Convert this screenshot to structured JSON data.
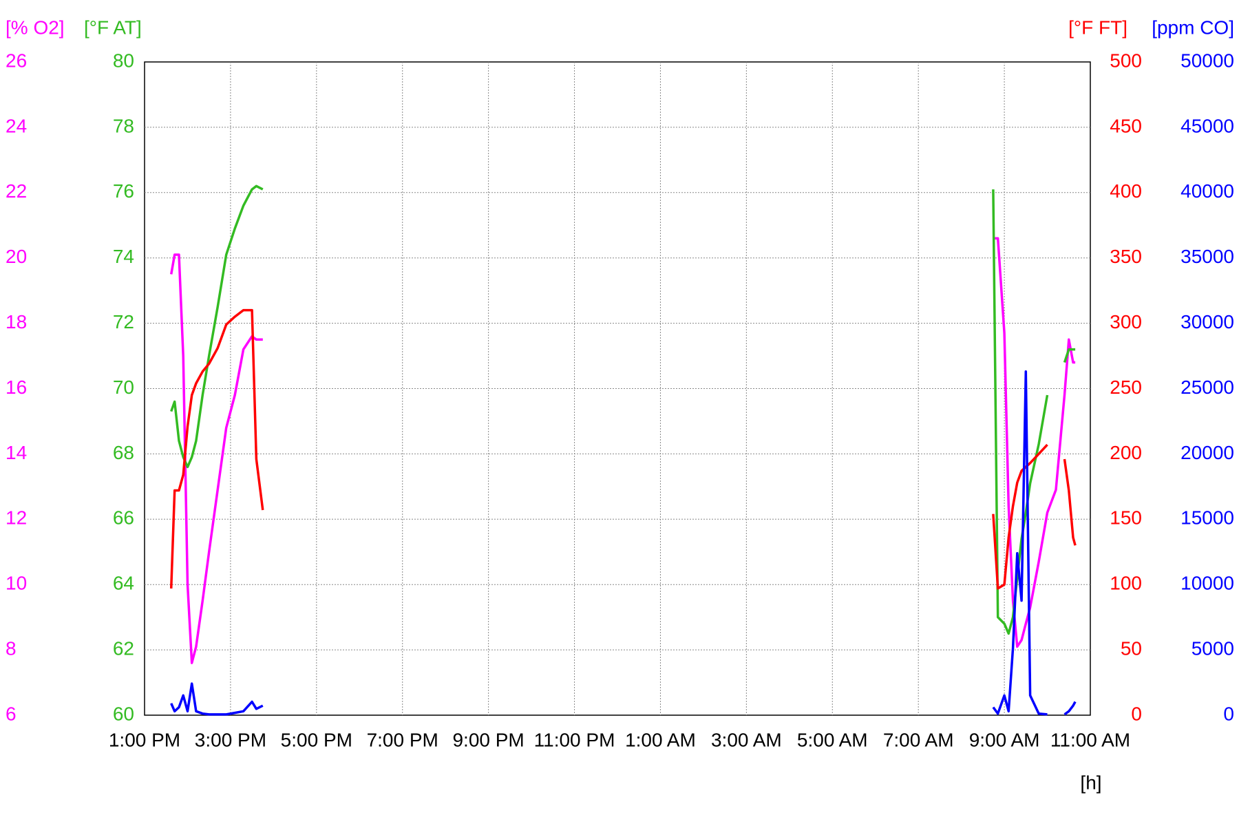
{
  "chart_data": {
    "type": "line",
    "xlabel": "[h]",
    "xlim": [
      13,
      35
    ],
    "xticks": [
      {
        "value": 13,
        "label": "1:00 PM"
      },
      {
        "value": 15,
        "label": "3:00 PM"
      },
      {
        "value": 17,
        "label": "5:00 PM"
      },
      {
        "value": 19,
        "label": "7:00 PM"
      },
      {
        "value": 21,
        "label": "9:00 PM"
      },
      {
        "value": 23,
        "label": "11:00 PM"
      },
      {
        "value": 25,
        "label": "1:00 AM"
      },
      {
        "value": 27,
        "label": "3:00 AM"
      },
      {
        "value": 29,
        "label": "5:00 AM"
      },
      {
        "value": 31,
        "label": "7:00 AM"
      },
      {
        "value": 33,
        "label": "9:00 AM"
      },
      {
        "value": 35,
        "label": "11:00 AM"
      }
    ],
    "ylabel": "[% O2]",
    "ylim": [
      6,
      26
    ],
    "yticks": [
      6,
      8,
      10,
      12,
      14,
      16,
      18,
      20,
      22,
      24,
      26
    ],
    "y2label": "[°F AT]",
    "y2lim": [
      60,
      80
    ],
    "y2ticks": [
      60,
      62,
      64,
      66,
      68,
      70,
      72,
      74,
      76,
      78,
      80
    ],
    "y3label": "[°F FT]",
    "y3lim": [
      0,
      500
    ],
    "y3ticks": [
      0,
      50,
      100,
      150,
      200,
      250,
      300,
      350,
      400,
      450,
      500
    ],
    "y4label": "[ppm CO]",
    "y4lim": [
      0,
      50000
    ],
    "y4ticks": [
      0,
      5000,
      10000,
      15000,
      20000,
      25000,
      30000,
      35000,
      40000,
      45000,
      50000
    ],
    "grid": true,
    "x": [
      13.62,
      13.7,
      13.8,
      13.9,
      14.0,
      14.1,
      14.2,
      14.35,
      14.5,
      14.7,
      14.9,
      15.1,
      15.3,
      15.5,
      15.6,
      15.75,
      null,
      32.74,
      32.85,
      33.0,
      33.1,
      33.2,
      33.3,
      33.4,
      33.5,
      33.6,
      33.8,
      34.0,
      34.2,
      34.4,
      34.5,
      34.6,
      34.65
    ],
    "series": [
      {
        "name": "% O2",
        "color": "#ff00ff",
        "axis": "y",
        "values": [
          19.5,
          20.1,
          20.1,
          17.0,
          10.0,
          7.6,
          8.1,
          9.5,
          11.0,
          12.9,
          14.8,
          15.8,
          17.2,
          17.6,
          17.5,
          17.5,
          null,
          20.6,
          20.6,
          17.7,
          12.4,
          9.5,
          8.1,
          8.3,
          8.8,
          9.3,
          10.7,
          12.2,
          12.9,
          15.8,
          17.5,
          16.8,
          16.8
        ]
      },
      {
        "name": "°F AT",
        "color": "#33bb22",
        "axis": "y2",
        "values": [
          69.3,
          69.6,
          68.4,
          67.9,
          67.6,
          67.9,
          68.4,
          69.8,
          71.0,
          72.5,
          74.1,
          74.9,
          75.6,
          76.1,
          76.2,
          76.1,
          null,
          76.1,
          63.0,
          62.8,
          62.5,
          63.0,
          64.2,
          65.4,
          66.2,
          67.1,
          68.3,
          69.8,
          null,
          70.8,
          71.2,
          71.2,
          71.2
        ]
      },
      {
        "name": "°F FT",
        "color": "#ff0000",
        "axis": "y3",
        "values": [
          97,
          172,
          172,
          184,
          221,
          245,
          254,
          263,
          269,
          281,
          299,
          305,
          310,
          310,
          196,
          157,
          null,
          154,
          97,
          100,
          136,
          160,
          178,
          187,
          190,
          193,
          200,
          207,
          null,
          196,
          172,
          136,
          130
        ]
      },
      {
        "name": "ppm CO",
        "color": "#0000ff",
        "axis": "y4",
        "values": [
          907,
          302,
          605,
          1512,
          302,
          2418,
          302,
          121,
          60,
          60,
          60,
          181,
          302,
          1028,
          484,
          726,
          null,
          605,
          121,
          1512,
          302,
          5139,
          12394,
          8767,
          26300,
          1512,
          121,
          60,
          null,
          60,
          302,
          726,
          1028
        ]
      }
    ]
  }
}
